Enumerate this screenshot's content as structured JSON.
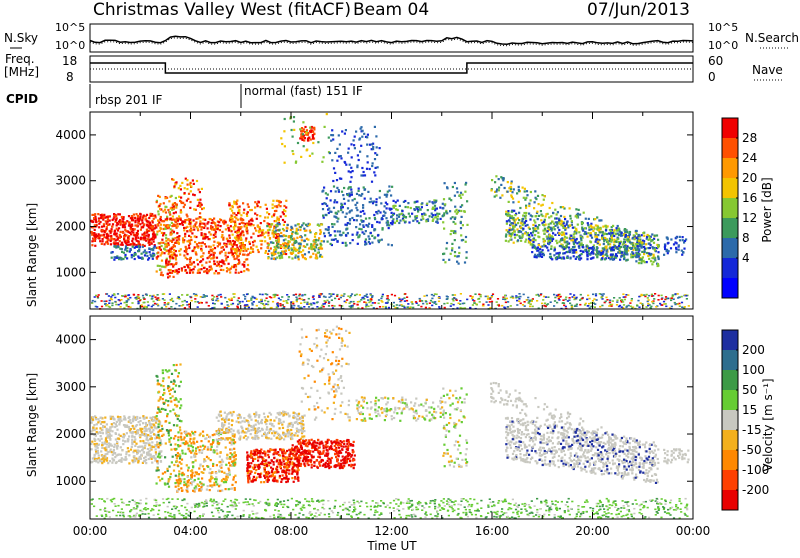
{
  "header": {
    "title": "Christmas Valley West (fitACF)",
    "beam": "Beam 04",
    "date": "07/Jun/2013"
  },
  "noise_panel": {
    "left_label": "N.Sky",
    "right_label": "N.Search",
    "left_ticks": [
      "10^5",
      "10^0"
    ],
    "right_ticks": [
      "10^5",
      "10^0"
    ]
  },
  "freq_panel": {
    "left_label_line1": "Freq.",
    "left_label_line2": "[MHz]",
    "left_ticks": [
      "18",
      "8"
    ],
    "right_label": "Nave",
    "right_ticks": [
      "60",
      "0"
    ]
  },
  "cpid": {
    "label": "CPID",
    "segments": [
      {
        "name": "rbsp 201 IF",
        "start_hour": 0
      },
      {
        "name": "normal (fast) 151 IF",
        "start_hour": 6
      }
    ]
  },
  "chart_data": [
    {
      "type": "heatmap",
      "name": "power",
      "ylabel": "Slant Range [km]",
      "xlabel": "Time UT",
      "xlim_hours": [
        0,
        24
      ],
      "ylim": [
        200,
        4500
      ],
      "y_ticks": [
        1000,
        2000,
        3000,
        4000
      ],
      "x_tick_labels": [
        "00:00",
        "04:00",
        "08:00",
        "12:00",
        "16:00",
        "20:00",
        "00:00"
      ],
      "colorbar": {
        "label": "Power [dB]",
        "ticks": [
          "28",
          "24",
          "20",
          "16",
          "12",
          "8",
          "4"
        ],
        "colors": [
          "#f00000",
          "#ff5000",
          "#ff9900",
          "#f3c400",
          "#86c832",
          "#3c9a5c",
          "#2c6aaa",
          "#1428d8",
          "#0000ff"
        ]
      }
    },
    {
      "type": "heatmap",
      "name": "velocity",
      "ylabel": "Slant Range [km]",
      "xlabel": "Time UT",
      "xlim_hours": [
        0,
        24
      ],
      "ylim": [
        200,
        4500
      ],
      "y_ticks": [
        1000,
        2000,
        3000,
        4000
      ],
      "x_tick_labels": [
        "00:00",
        "04:00",
        "08:00",
        "12:00",
        "16:00",
        "20:00",
        "00:00"
      ],
      "colorbar": {
        "label": "Velocity [m s⁻¹]",
        "ticks": [
          "200",
          "100",
          "50",
          "15",
          "-15",
          "-50",
          "-100",
          "-200"
        ],
        "colors": [
          "#1e2fa0",
          "#2e6e8e",
          "#3c9a46",
          "#66cc33",
          "#c8c8c0",
          "#f3b01c",
          "#ff8800",
          "#ff4000",
          "#e80000"
        ]
      }
    }
  ],
  "x_axis": {
    "title": "Time UT",
    "tick_labels": [
      "00:00",
      "04:00",
      "08:00",
      "12:00",
      "16:00",
      "20:00",
      "00:00"
    ]
  }
}
